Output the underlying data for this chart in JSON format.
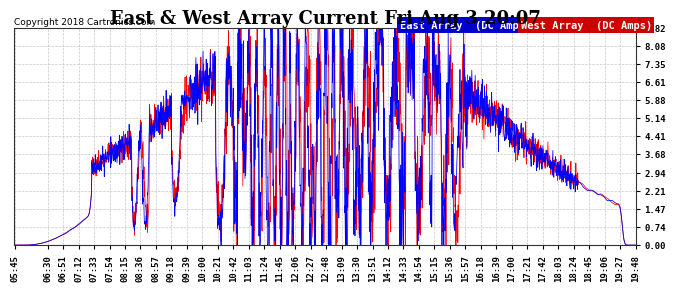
{
  "title": "East & West Array Current Fri Aug 3 20:07",
  "copyright": "Copyright 2018 Cartronics.com",
  "legend_east": "East Array  (DC Amps)",
  "legend_west": "West Array  (DC Amps)",
  "east_color": "#0000FF",
  "west_color": "#FF0000",
  "east_legend_bg": "#0000CC",
  "west_legend_bg": "#CC0000",
  "background_color": "#ffffff",
  "plot_bg_color": "#ffffff",
  "grid_color": "#bbbbbb",
  "ylim": [
    0.0,
    8.82
  ],
  "yticks": [
    0.0,
    0.74,
    1.47,
    2.21,
    2.94,
    3.68,
    4.41,
    5.14,
    5.88,
    6.61,
    7.35,
    8.08,
    8.82
  ],
  "xtick_labels": [
    "05:45",
    "06:30",
    "06:51",
    "07:12",
    "07:33",
    "07:54",
    "08:15",
    "08:36",
    "08:57",
    "09:18",
    "09:39",
    "10:00",
    "10:21",
    "10:42",
    "11:03",
    "11:24",
    "11:45",
    "12:06",
    "12:27",
    "12:48",
    "13:09",
    "13:30",
    "13:51",
    "14:12",
    "14:33",
    "14:54",
    "15:15",
    "15:36",
    "15:57",
    "16:18",
    "16:39",
    "17:00",
    "17:21",
    "17:42",
    "18:03",
    "18:24",
    "18:45",
    "19:06",
    "19:27",
    "19:48"
  ],
  "title_fontsize": 13,
  "tick_fontsize": 6.5,
  "legend_fontsize": 7.5,
  "copyright_fontsize": 6.5
}
